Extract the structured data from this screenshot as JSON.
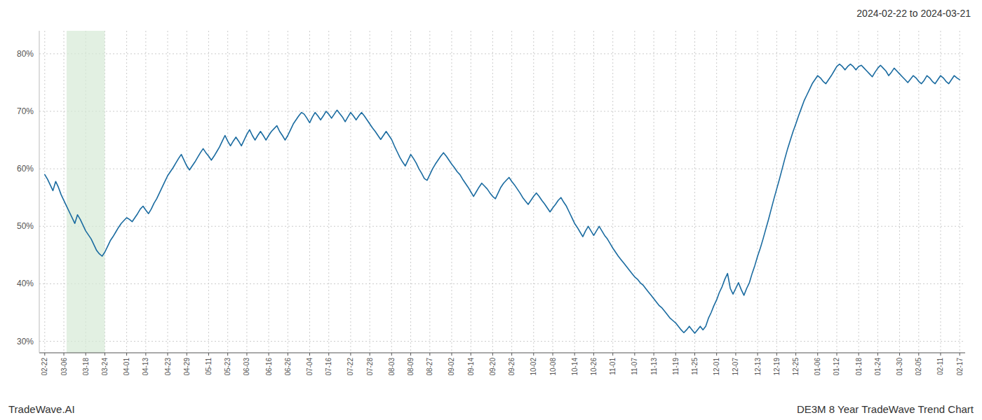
{
  "chart_data": {
    "type": "line",
    "title": "2024-02-22 to 2024-03-21",
    "annotations": [
      "TradeWave.AI",
      "DE3M 8 Year TradeWave Trend Chart"
    ],
    "color": "#1a6ba0",
    "grid": true,
    "ylim": [
      0.28,
      0.84
    ],
    "yticks": [
      {
        "value": 0.3,
        "label": "30%"
      },
      {
        "value": 0.4,
        "label": "40%"
      },
      {
        "value": 0.5,
        "label": "50%"
      },
      {
        "value": 0.6,
        "label": "60%"
      },
      {
        "value": 0.7,
        "label": "70%"
      },
      {
        "value": 0.8,
        "label": "80%"
      }
    ],
    "highlight": {
      "range": [
        8,
        22
      ],
      "color": "#d6ead6"
    },
    "categories": [
      "02-22",
      null,
      null,
      null,
      null,
      null,
      null,
      "03-06",
      null,
      null,
      null,
      null,
      null,
      null,
      null,
      "03-18",
      null,
      null,
      null,
      null,
      null,
      null,
      "03-24",
      null,
      null,
      null,
      null,
      null,
      null,
      null,
      "04-01",
      null,
      null,
      null,
      null,
      null,
      null,
      "04-13",
      null,
      null,
      null,
      null,
      null,
      null,
      null,
      "04-23",
      null,
      null,
      null,
      null,
      null,
      null,
      "04-29",
      null,
      null,
      null,
      null,
      null,
      null,
      null,
      "05-11",
      null,
      null,
      null,
      null,
      null,
      null,
      "05-23",
      null,
      null,
      null,
      null,
      null,
      null,
      "06-03",
      null,
      null,
      null,
      null,
      null,
      null,
      null,
      "06-16",
      null,
      null,
      null,
      null,
      null,
      null,
      "06-26",
      null,
      null,
      null,
      null,
      null,
      null,
      null,
      "07-04",
      null,
      null,
      null,
      null,
      null,
      null,
      "07-16",
      null,
      null,
      null,
      null,
      null,
      null,
      null,
      "07-22",
      null,
      null,
      null,
      null,
      null,
      null,
      "07-28",
      null,
      null,
      null,
      null,
      null,
      null,
      null,
      "08-03",
      null,
      null,
      null,
      null,
      null,
      null,
      "08-09",
      null,
      null,
      null,
      null,
      null,
      null,
      "08-27",
      null,
      null,
      null,
      null,
      null,
      null,
      null,
      "09-02",
      null,
      null,
      null,
      null,
      null,
      null,
      "09-14",
      null,
      null,
      null,
      null,
      null,
      null,
      null,
      "09-20",
      null,
      null,
      null,
      null,
      null,
      null,
      "09-26",
      null,
      null,
      null,
      null,
      null,
      null,
      null,
      "10-02",
      null,
      null,
      null,
      null,
      null,
      null,
      "10-08",
      null,
      null,
      null,
      null,
      null,
      null,
      null,
      "10-14",
      null,
      null,
      null,
      null,
      null,
      null,
      "10-26",
      null,
      null,
      null,
      null,
      null,
      null,
      "11-01",
      null,
      null,
      null,
      null,
      null,
      null,
      null,
      "11-07",
      null,
      null,
      null,
      null,
      null,
      null,
      "11-13",
      null,
      null,
      null,
      null,
      null,
      null,
      null,
      "11-19",
      null,
      null,
      null,
      null,
      null,
      null,
      "11-25",
      null,
      null,
      null,
      null,
      null,
      null,
      null,
      "12-01",
      null,
      null,
      null,
      null,
      null,
      null,
      "12-07",
      null,
      null,
      null,
      null,
      null,
      null,
      null,
      "12-13",
      null,
      null,
      null,
      null,
      null,
      null,
      "12-19",
      null,
      null,
      null,
      null,
      null,
      null,
      "12-25",
      null,
      null,
      null,
      null,
      null,
      null,
      null,
      "01-06",
      null,
      null,
      null,
      null,
      null,
      null,
      "01-12",
      null,
      null,
      null,
      null,
      null,
      null,
      null,
      "01-18",
      null,
      null,
      null,
      null,
      null,
      null,
      "01-24",
      null,
      null,
      null,
      null,
      null,
      null,
      null,
      "01-30",
      null,
      null,
      null,
      null,
      null,
      null,
      "02-05",
      null,
      null,
      null,
      null,
      null,
      null,
      null,
      "02-11",
      null,
      null,
      null,
      null,
      null,
      null,
      "02-17"
    ],
    "values": [
      0.59,
      0.582,
      0.572,
      0.562,
      0.578,
      0.568,
      0.555,
      0.545,
      0.535,
      0.525,
      0.515,
      0.505,
      0.52,
      0.512,
      0.502,
      0.492,
      0.485,
      0.478,
      0.468,
      0.458,
      0.452,
      0.448,
      0.455,
      0.465,
      0.475,
      0.482,
      0.49,
      0.498,
      0.505,
      0.51,
      0.515,
      0.512,
      0.508,
      0.515,
      0.522,
      0.53,
      0.535,
      0.528,
      0.522,
      0.53,
      0.54,
      0.548,
      0.558,
      0.568,
      0.578,
      0.588,
      0.595,
      0.602,
      0.61,
      0.618,
      0.625,
      0.615,
      0.605,
      0.598,
      0.605,
      0.612,
      0.62,
      0.628,
      0.635,
      0.628,
      0.622,
      0.615,
      0.622,
      0.63,
      0.638,
      0.648,
      0.658,
      0.648,
      0.64,
      0.648,
      0.655,
      0.648,
      0.64,
      0.65,
      0.66,
      0.668,
      0.658,
      0.65,
      0.658,
      0.665,
      0.658,
      0.65,
      0.658,
      0.665,
      0.67,
      0.675,
      0.665,
      0.658,
      0.65,
      0.658,
      0.668,
      0.678,
      0.685,
      0.692,
      0.698,
      0.695,
      0.688,
      0.68,
      0.69,
      0.698,
      0.692,
      0.685,
      0.692,
      0.7,
      0.695,
      0.688,
      0.695,
      0.702,
      0.696,
      0.69,
      0.682,
      0.69,
      0.698,
      0.692,
      0.685,
      0.692,
      0.698,
      0.692,
      0.685,
      0.678,
      0.671,
      0.665,
      0.658,
      0.651,
      0.658,
      0.665,
      0.658,
      0.651,
      0.64,
      0.63,
      0.62,
      0.612,
      0.605,
      0.615,
      0.625,
      0.618,
      0.61,
      0.6,
      0.592,
      0.583,
      0.58,
      0.59,
      0.6,
      0.608,
      0.615,
      0.622,
      0.628,
      0.622,
      0.615,
      0.608,
      0.602,
      0.595,
      0.59,
      0.582,
      0.575,
      0.568,
      0.56,
      0.552,
      0.56,
      0.568,
      0.575,
      0.57,
      0.565,
      0.558,
      0.552,
      0.548,
      0.558,
      0.568,
      0.575,
      0.58,
      0.585,
      0.578,
      0.572,
      0.565,
      0.558,
      0.55,
      0.544,
      0.538,
      0.545,
      0.552,
      0.558,
      0.552,
      0.545,
      0.539,
      0.532,
      0.525,
      0.532,
      0.538,
      0.545,
      0.55,
      0.542,
      0.535,
      0.525,
      0.515,
      0.505,
      0.498,
      0.49,
      0.482,
      0.492,
      0.5,
      0.492,
      0.484,
      0.492,
      0.5,
      0.492,
      0.484,
      0.478,
      0.47,
      0.462,
      0.455,
      0.448,
      0.442,
      0.436,
      0.43,
      0.424,
      0.418,
      0.412,
      0.408,
      0.402,
      0.398,
      0.392,
      0.386,
      0.38,
      0.374,
      0.368,
      0.362,
      0.358,
      0.352,
      0.346,
      0.34,
      0.336,
      0.332,
      0.326,
      0.32,
      0.315,
      0.32,
      0.326,
      0.32,
      0.314,
      0.32,
      0.326,
      0.32,
      0.326,
      0.34,
      0.35,
      0.362,
      0.372,
      0.385,
      0.395,
      0.408,
      0.418,
      0.392,
      0.382,
      0.392,
      0.402,
      0.39,
      0.38,
      0.392,
      0.402,
      0.418,
      0.432,
      0.448,
      0.462,
      0.478,
      0.495,
      0.512,
      0.53,
      0.548,
      0.565,
      0.582,
      0.6,
      0.618,
      0.635,
      0.65,
      0.665,
      0.678,
      0.692,
      0.705,
      0.718,
      0.728,
      0.738,
      0.748,
      0.755,
      0.762,
      0.758,
      0.752,
      0.748,
      0.755,
      0.762,
      0.77,
      0.778,
      0.782,
      0.778,
      0.772,
      0.778,
      0.782,
      0.778,
      0.772,
      0.778,
      0.78,
      0.775,
      0.77,
      0.765,
      0.76,
      0.768,
      0.775,
      0.78,
      0.775,
      0.77,
      0.762,
      0.768,
      0.775,
      0.77,
      0.765,
      0.76,
      0.755,
      0.75,
      0.756,
      0.762,
      0.758,
      0.752,
      0.748,
      0.754,
      0.762,
      0.758,
      0.752,
      0.748,
      0.755,
      0.762,
      0.758,
      0.752,
      0.748,
      0.755,
      0.762,
      0.758,
      0.755
    ]
  }
}
